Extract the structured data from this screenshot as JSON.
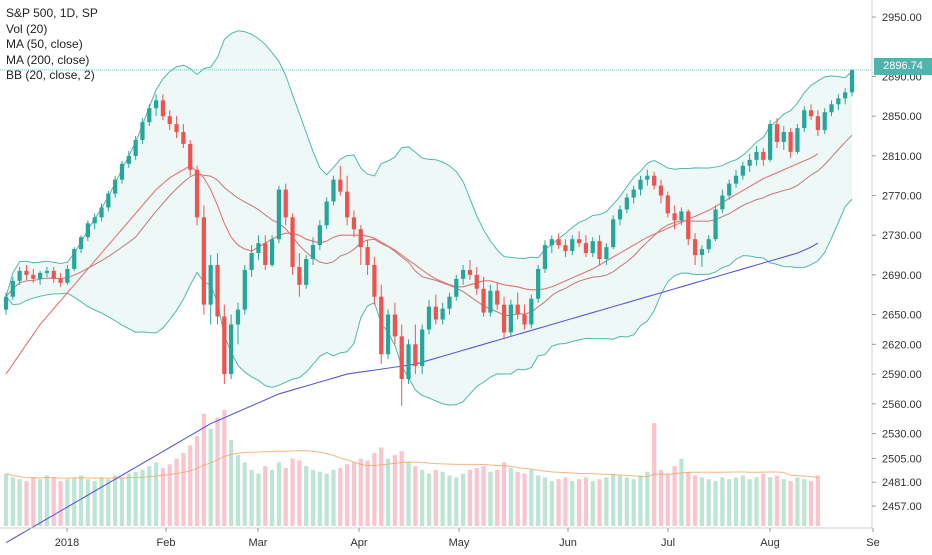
{
  "chart_data": {
    "type": "candlestick",
    "symbol_line": "S&P 500, 1D, SP",
    "indicators": [
      "Vol (20)",
      "MA (50, close)",
      "MA (200, close)",
      "BB (20, close, 2)"
    ],
    "last_price_label": "2896.74",
    "last_price": 2896.74,
    "y_ticks": [
      2950,
      2890,
      2850,
      2810,
      2770,
      2730,
      2690,
      2650,
      2620,
      2590,
      2560,
      2530,
      2505,
      2481,
      2457
    ],
    "y_tick_labels": [
      "2950.00",
      "2890.00",
      "2850.00",
      "2810.00",
      "2770.00",
      "2730.00",
      "2690.00",
      "2650.00",
      "2620.00",
      "2590.00",
      "2560.00",
      "2530.00",
      "2505.00",
      "2481.00",
      "2457.00"
    ],
    "x_tick_labels": [
      "2018",
      "Feb",
      "Mar",
      "Apr",
      "May",
      "Jun",
      "Jul",
      "Aug",
      "Se"
    ],
    "candles": [
      [
        2655,
        2672,
        2650,
        2668
      ],
      [
        2668,
        2688,
        2665,
        2684
      ],
      [
        2684,
        2698,
        2680,
        2694
      ],
      [
        2694,
        2700,
        2685,
        2690
      ],
      [
        2690,
        2696,
        2682,
        2686
      ],
      [
        2686,
        2694,
        2680,
        2692
      ],
      [
        2692,
        2698,
        2688,
        2694
      ],
      [
        2694,
        2698,
        2682,
        2686
      ],
      [
        2686,
        2692,
        2678,
        2682
      ],
      [
        2682,
        2700,
        2680,
        2696
      ],
      [
        2696,
        2718,
        2694,
        2716
      ],
      [
        2716,
        2730,
        2712,
        2728
      ],
      [
        2728,
        2745,
        2724,
        2742
      ],
      [
        2742,
        2752,
        2736,
        2748
      ],
      [
        2748,
        2762,
        2744,
        2758
      ],
      [
        2758,
        2775,
        2754,
        2772
      ],
      [
        2772,
        2790,
        2768,
        2786
      ],
      [
        2786,
        2805,
        2782,
        2802
      ],
      [
        2802,
        2815,
        2798,
        2810
      ],
      [
        2810,
        2830,
        2806,
        2826
      ],
      [
        2826,
        2848,
        2822,
        2844
      ],
      [
        2844,
        2862,
        2840,
        2858
      ],
      [
        2858,
        2872,
        2850,
        2866
      ],
      [
        2866,
        2872,
        2846,
        2850
      ],
      [
        2850,
        2856,
        2836,
        2842
      ],
      [
        2842,
        2850,
        2828,
        2834
      ],
      [
        2834,
        2842,
        2818,
        2822
      ],
      [
        2822,
        2826,
        2790,
        2796
      ],
      [
        2796,
        2800,
        2740,
        2748
      ],
      [
        2748,
        2760,
        2650,
        2660
      ],
      [
        2660,
        2710,
        2640,
        2700
      ],
      [
        2700,
        2712,
        2640,
        2648
      ],
      [
        2648,
        2660,
        2580,
        2590
      ],
      [
        2590,
        2650,
        2585,
        2640
      ],
      [
        2640,
        2662,
        2620,
        2655
      ],
      [
        2655,
        2700,
        2650,
        2695
      ],
      [
        2695,
        2720,
        2688,
        2712
      ],
      [
        2712,
        2730,
        2705,
        2722
      ],
      [
        2722,
        2730,
        2695,
        2700
      ],
      [
        2700,
        2730,
        2698,
        2726
      ],
      [
        2726,
        2780,
        2722,
        2776
      ],
      [
        2776,
        2782,
        2740,
        2748
      ],
      [
        2748,
        2752,
        2690,
        2698
      ],
      [
        2698,
        2712,
        2668,
        2680
      ],
      [
        2680,
        2710,
        2676,
        2706
      ],
      [
        2706,
        2728,
        2700,
        2720
      ],
      [
        2720,
        2745,
        2715,
        2740
      ],
      [
        2740,
        2768,
        2736,
        2764
      ],
      [
        2764,
        2790,
        2760,
        2786
      ],
      [
        2786,
        2800,
        2770,
        2774
      ],
      [
        2774,
        2790,
        2740,
        2748
      ],
      [
        2748,
        2755,
        2728,
        2736
      ],
      [
        2736,
        2740,
        2700,
        2718
      ],
      [
        2718,
        2725,
        2690,
        2700
      ],
      [
        2700,
        2708,
        2660,
        2668
      ],
      [
        2668,
        2680,
        2600,
        2610
      ],
      [
        2610,
        2655,
        2605,
        2650
      ],
      [
        2650,
        2662,
        2620,
        2628
      ],
      [
        2628,
        2640,
        2558,
        2585
      ],
      [
        2585,
        2625,
        2580,
        2620
      ],
      [
        2620,
        2640,
        2590,
        2598
      ],
      [
        2598,
        2640,
        2590,
        2635
      ],
      [
        2635,
        2665,
        2630,
        2658
      ],
      [
        2658,
        2670,
        2640,
        2645
      ],
      [
        2645,
        2662,
        2640,
        2656
      ],
      [
        2656,
        2672,
        2650,
        2668
      ],
      [
        2668,
        2690,
        2664,
        2686
      ],
      [
        2686,
        2700,
        2680,
        2695
      ],
      [
        2695,
        2705,
        2685,
        2690
      ],
      [
        2690,
        2698,
        2670,
        2676
      ],
      [
        2676,
        2688,
        2648,
        2652
      ],
      [
        2652,
        2680,
        2648,
        2674
      ],
      [
        2674,
        2682,
        2655,
        2660
      ],
      [
        2660,
        2668,
        2625,
        2632
      ],
      [
        2632,
        2665,
        2628,
        2660
      ],
      [
        2660,
        2672,
        2645,
        2650
      ],
      [
        2650,
        2660,
        2635,
        2640
      ],
      [
        2640,
        2670,
        2636,
        2666
      ],
      [
        2666,
        2700,
        2662,
        2696
      ],
      [
        2696,
        2725,
        2692,
        2720
      ],
      [
        2720,
        2730,
        2712,
        2726
      ],
      [
        2726,
        2732,
        2716,
        2720
      ],
      [
        2720,
        2726,
        2708,
        2714
      ],
      [
        2714,
        2730,
        2710,
        2726
      ],
      [
        2726,
        2734,
        2718,
        2722
      ],
      [
        2722,
        2730,
        2708,
        2712
      ],
      [
        2712,
        2728,
        2708,
        2724
      ],
      [
        2724,
        2730,
        2700,
        2706
      ],
      [
        2706,
        2722,
        2700,
        2718
      ],
      [
        2718,
        2750,
        2716,
        2746
      ],
      [
        2746,
        2760,
        2740,
        2756
      ],
      [
        2756,
        2772,
        2752,
        2768
      ],
      [
        2768,
        2780,
        2762,
        2776
      ],
      [
        2776,
        2790,
        2770,
        2786
      ],
      [
        2786,
        2796,
        2780,
        2790
      ],
      [
        2790,
        2794,
        2776,
        2780
      ],
      [
        2780,
        2786,
        2762,
        2770
      ],
      [
        2770,
        2774,
        2748,
        2752
      ],
      [
        2752,
        2760,
        2736,
        2745
      ],
      [
        2745,
        2758,
        2740,
        2754
      ],
      [
        2754,
        2756,
        2720,
        2726
      ],
      [
        2726,
        2732,
        2700,
        2710
      ],
      [
        2710,
        2720,
        2698,
        2716
      ],
      [
        2716,
        2730,
        2712,
        2726
      ],
      [
        2726,
        2760,
        2724,
        2756
      ],
      [
        2756,
        2776,
        2752,
        2770
      ],
      [
        2770,
        2786,
        2766,
        2782
      ],
      [
        2782,
        2796,
        2778,
        2790
      ],
      [
        2790,
        2804,
        2786,
        2800
      ],
      [
        2800,
        2812,
        2794,
        2806
      ],
      [
        2806,
        2820,
        2800,
        2814
      ],
      [
        2814,
        2818,
        2800,
        2806
      ],
      [
        2806,
        2846,
        2804,
        2842
      ],
      [
        2842,
        2848,
        2818,
        2824
      ],
      [
        2824,
        2840,
        2816,
        2834
      ],
      [
        2834,
        2838,
        2808,
        2814
      ],
      [
        2814,
        2842,
        2812,
        2838
      ],
      [
        2838,
        2860,
        2834,
        2856
      ],
      [
        2856,
        2862,
        2846,
        2850
      ],
      [
        2850,
        2856,
        2830,
        2836
      ],
      [
        2836,
        2858,
        2832,
        2854
      ],
      [
        2854,
        2866,
        2850,
        2862
      ],
      [
        2862,
        2872,
        2856,
        2868
      ],
      [
        2868,
        2878,
        2862,
        2874
      ],
      [
        2874,
        2896,
        2870,
        2896.74
      ]
    ],
    "volume_ylim": [
      0,
      7
    ],
    "volume": [
      2.8,
      2.6,
      2.5,
      2.4,
      2.6,
      2.5,
      2.7,
      2.6,
      2.4,
      2.5,
      2.6,
      2.7,
      2.5,
      2.4,
      2.6,
      2.5,
      2.7,
      2.6,
      2.8,
      2.9,
      3.0,
      3.2,
      3.4,
      3.1,
      3.3,
      3.6,
      3.9,
      4.3,
      4.8,
      6.0,
      5.2,
      5.8,
      6.2,
      4.6,
      3.8,
      3.4,
      3.0,
      2.8,
      3.2,
      3.0,
      3.4,
      3.1,
      3.6,
      3.5,
      3.2,
      3.0,
      2.9,
      2.8,
      3.0,
      3.1,
      3.3,
      3.4,
      3.6,
      3.5,
      3.9,
      4.2,
      3.6,
      3.8,
      4.0,
      3.4,
      3.2,
      3.0,
      2.8,
      3.0,
      2.9,
      2.7,
      2.6,
      2.8,
      3.0,
      3.1,
      3.2,
      2.9,
      3.0,
      3.4,
      3.1,
      2.9,
      2.8,
      3.0,
      2.7,
      2.6,
      2.4,
      2.5,
      2.6,
      2.4,
      2.5,
      2.6,
      2.4,
      2.5,
      2.6,
      2.8,
      2.7,
      2.6,
      2.5,
      2.7,
      2.9,
      5.5,
      3.0,
      2.8,
      3.2,
      3.6,
      2.9,
      2.7,
      2.6,
      2.5,
      2.4,
      2.6,
      2.5,
      2.6,
      2.7,
      2.5,
      2.6,
      2.8,
      2.6,
      2.7,
      2.5,
      2.4,
      2.6,
      2.5,
      2.4,
      2.7
    ],
    "ma50": [
      2590,
      2600,
      2610,
      2620,
      2630,
      2640,
      2648,
      2656,
      2664,
      2672,
      2680,
      2688,
      2696,
      2704,
      2712,
      2720,
      2728,
      2736,
      2744,
      2752,
      2760,
      2768,
      2776,
      2782,
      2788,
      2792,
      2796,
      2800,
      2794,
      2788,
      2776,
      2760,
      2742,
      2728,
      2720,
      2716,
      2714,
      2718,
      2722,
      2726,
      2730,
      2732,
      2732,
      2730,
      2726,
      2724,
      2722,
      2724,
      2728,
      2730,
      2730,
      2730,
      2730,
      2729,
      2727,
      2723,
      2719,
      2715,
      2710,
      2705,
      2700,
      2695,
      2690,
      2686,
      2683,
      2680,
      2678,
      2678,
      2680,
      2682,
      2684,
      2684,
      2682,
      2680,
      2679,
      2678,
      2676,
      2675,
      2675,
      2676,
      2678,
      2681,
      2684,
      2687,
      2690,
      2693,
      2696,
      2700,
      2704,
      2708,
      2712,
      2716,
      2720,
      2724,
      2728,
      2731,
      2734,
      2737,
      2740,
      2743,
      2746,
      2749,
      2752,
      2755,
      2759,
      2763,
      2767,
      2771,
      2775,
      2779,
      2783,
      2787,
      2790,
      2793,
      2796,
      2799,
      2802,
      2805,
      2808,
      2812
    ],
    "ma200": [
      2420,
      2424,
      2428,
      2432,
      2436,
      2440,
      2444,
      2448,
      2452,
      2456,
      2460,
      2464,
      2468,
      2472,
      2476,
      2480,
      2484,
      2488,
      2492,
      2496,
      2500,
      2504,
      2508,
      2512,
      2516,
      2520,
      2524,
      2528,
      2532,
      2536,
      2540,
      2543,
      2546,
      2549,
      2552,
      2555,
      2558,
      2561,
      2564,
      2567,
      2570,
      2572,
      2574,
      2576,
      2578,
      2580,
      2582,
      2584,
      2586,
      2588,
      2590,
      2591,
      2592,
      2593,
      2594,
      2595,
      2596,
      2597,
      2598,
      2599,
      2600,
      2602,
      2604,
      2606,
      2608,
      2610,
      2612,
      2614,
      2616,
      2618,
      2620,
      2622,
      2624,
      2626,
      2628,
      2630,
      2632,
      2634,
      2636,
      2638,
      2640,
      2642,
      2644,
      2646,
      2648,
      2650,
      2652,
      2654,
      2656,
      2658,
      2660,
      2662,
      2664,
      2666,
      2668,
      2670,
      2672,
      2674,
      2676,
      2678,
      2680,
      2682,
      2684,
      2686,
      2688,
      2690,
      2692,
      2694,
      2696,
      2698,
      2700,
      2702,
      2704,
      2706,
      2708,
      2710,
      2712,
      2715,
      2718,
      2722
    ]
  }
}
